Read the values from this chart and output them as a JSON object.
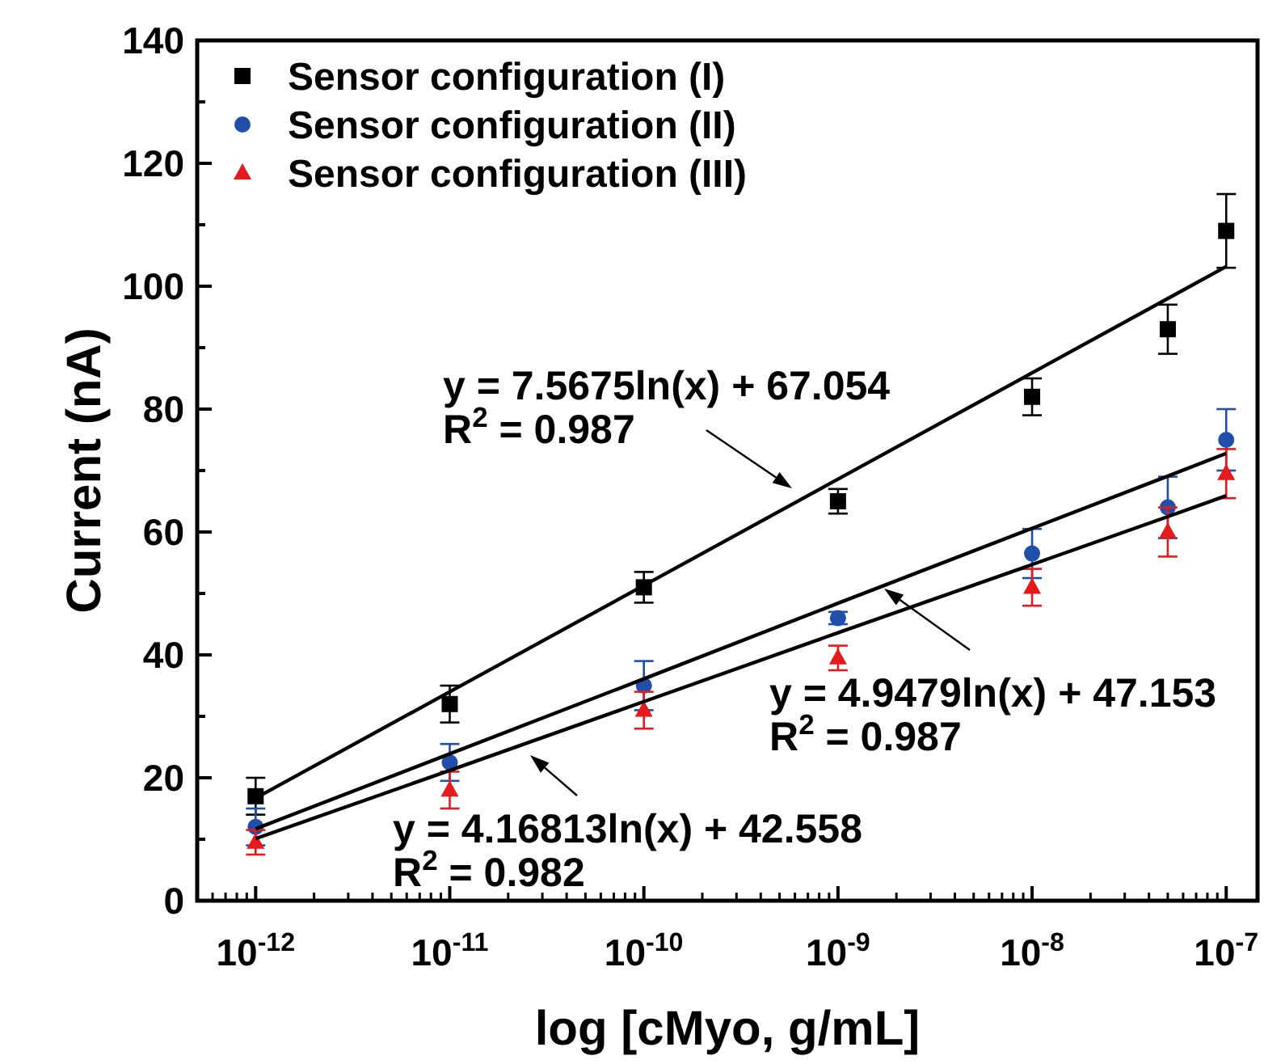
{
  "chart_data": {
    "type": "scatter",
    "xlabel": "log [cMyo, g/mL]",
    "ylabel": "Current (nA)",
    "log": "x",
    "xlim": [
      5e-13,
      1.45e-07
    ],
    "ylim": [
      0,
      140
    ],
    "xticks": [
      {
        "value": 1e-12,
        "label": "10$^{-12}$"
      },
      {
        "value": 1e-11,
        "label": "10$^{-11}$"
      },
      {
        "value": 1e-10,
        "label": "10$^{-10}$"
      },
      {
        "value": 1e-09,
        "label": "10$^{-9}$"
      },
      {
        "value": 1e-08,
        "label": "10$^{-8}$"
      },
      {
        "value": 1e-07,
        "label": "10$^{-7}$"
      }
    ],
    "yticks": [
      0,
      {
        "value": 10,
        "label": null
      },
      20,
      {
        "value": 30,
        "label": null
      },
      40,
      {
        "value": 50,
        "label": null
      },
      60,
      {
        "value": 70,
        "label": null
      },
      80,
      {
        "value": 90,
        "label": null
      },
      100,
      {
        "value": 110,
        "label": null
      },
      120,
      {
        "value": 130,
        "label": null
      },
      140
    ],
    "legend": "top left",
    "grid": false,
    "x": [
      1e-12,
      1e-11,
      1e-10,
      1e-09,
      1e-08,
      5e-08,
      1e-07
    ],
    "series": [
      {
        "name": "Sensor configuration (I)",
        "color": "#000000",
        "marker": "square",
        "values": [
          17,
          32,
          51,
          65,
          82,
          93,
          109
        ],
        "errors": [
          3,
          3,
          2.5,
          2,
          3,
          4,
          6
        ]
      },
      {
        "name": "Sensor configuration (II)",
        "color": "#1f4fa8",
        "marker": "circle",
        "values": [
          12,
          22.5,
          35,
          46,
          56.5,
          64,
          75
        ],
        "errors": [
          3,
          3,
          4,
          1,
          4,
          5,
          5
        ]
      },
      {
        "name": "Sensor configuration (III)",
        "color": "#e41a1c",
        "marker": "triangle",
        "values": [
          9.5,
          18,
          31,
          39.5,
          51,
          60,
          69.5
        ],
        "errors": [
          2,
          3,
          3,
          2,
          3,
          4,
          4
        ]
      },
      {
        "type": "line",
        "color": "#000000",
        "marker": "none",
        "values": [
          16.7,
          34,
          51.3,
          68.6,
          85.9,
          98,
          103.2
        ]
      },
      {
        "type": "line",
        "color": "#000000",
        "marker": "none",
        "values": [
          11.7,
          23.9,
          36.1,
          48.4,
          60.6,
          69.1,
          72.8
        ]
      },
      {
        "type": "line",
        "color": "#000000",
        "marker": "none",
        "values": [
          10.1,
          21.2,
          32.4,
          43.6,
          54.7,
          62.5,
          65.9
        ]
      }
    ],
    "annotations": [
      "y = 7.5675ln(x) + 67.054\nR$^{2}$ = 0.987",
      "y = 4.9479ln(x) + 47.153\nR$^{2}$ = 0.987",
      "y = 4.16813ln(x) + 42.558\nR$^{2}$ = 0.982"
    ]
  }
}
